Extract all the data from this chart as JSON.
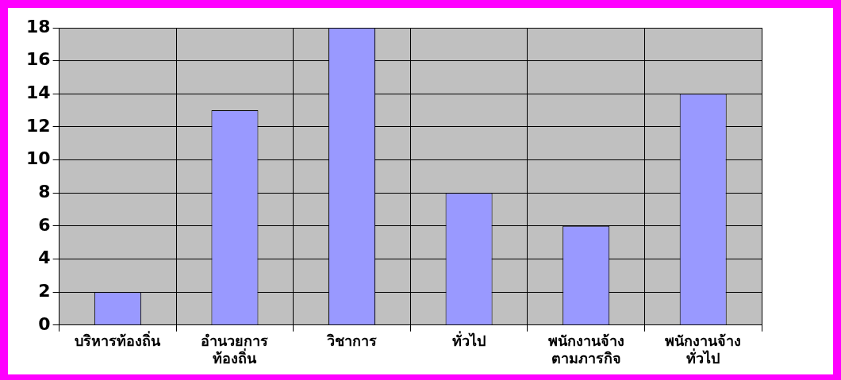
{
  "chart_data": {
    "type": "bar",
    "categories": [
      "บริหารท้องถิ่น",
      "อำนวยการ\nท้องถิ่น",
      "วิชาการ",
      "ทั่วไป",
      "พนักงานจ้าง\nตามภารกิจ",
      "พนักงานจ้าง\nทั่วไป"
    ],
    "values": [
      2,
      13,
      18,
      8,
      6,
      14
    ],
    "color": "#9999ff",
    "ylim": [
      0,
      18
    ],
    "yticks": [
      0,
      2,
      4,
      6,
      8,
      10,
      12,
      14,
      16,
      18
    ],
    "grid": true
  }
}
